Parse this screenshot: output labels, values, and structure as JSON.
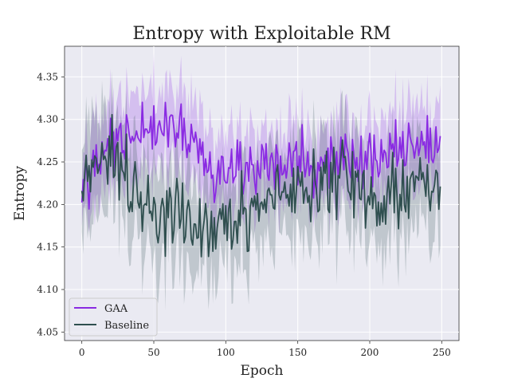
{
  "chart_data": {
    "type": "line",
    "title": "Entropy with Exploitable RM",
    "xlabel": "Epoch",
    "ylabel": "Entropy",
    "xlim": [
      -12,
      262
    ],
    "ylim": [
      4.04,
      4.386
    ],
    "x_ticks": [
      0,
      50,
      100,
      150,
      200,
      250
    ],
    "y_ticks": [
      4.05,
      4.1,
      4.15,
      4.2,
      4.25,
      4.3,
      4.35
    ],
    "x_tick_labels": [
      "0",
      "50",
      "100",
      "150",
      "200",
      "250"
    ],
    "y_tick_labels": [
      "4.05",
      "4.10",
      "4.15",
      "4.20",
      "4.25",
      "4.30",
      "4.35"
    ],
    "grid": true,
    "background": "#eaeaf2",
    "legend_position": "lower-left",
    "series": [
      {
        "name": "GAA",
        "color": "#8a2be2",
        "x_start": 0,
        "x_end": 249,
        "mean_level": 4.255,
        "noise_sd": 0.025,
        "band_halfwidth": 0.045,
        "markers": [
          [
            0,
            4.22
          ],
          [
            10,
            4.26
          ],
          [
            25,
            4.29
          ],
          [
            55,
            4.32
          ],
          [
            70,
            4.31
          ],
          [
            90,
            4.22
          ],
          [
            130,
            4.24
          ],
          [
            160,
            4.23
          ],
          [
            200,
            4.25
          ],
          [
            230,
            4.29
          ],
          [
            249,
            4.27
          ]
        ]
      },
      {
        "name": "Baseline",
        "color": "#2f4f4f",
        "x_start": 0,
        "x_end": 249,
        "mean_level": 4.218,
        "noise_sd": 0.03,
        "band_halfwidth": 0.055,
        "markers": [
          [
            0,
            4.19
          ],
          [
            3,
            4.25
          ],
          [
            22,
            4.31
          ],
          [
            48,
            4.17
          ],
          [
            67,
            4.15
          ],
          [
            85,
            4.11
          ],
          [
            140,
            4.21
          ],
          [
            175,
            4.26
          ],
          [
            210,
            4.18
          ],
          [
            240,
            4.24
          ],
          [
            249,
            4.2
          ]
        ]
      }
    ]
  }
}
